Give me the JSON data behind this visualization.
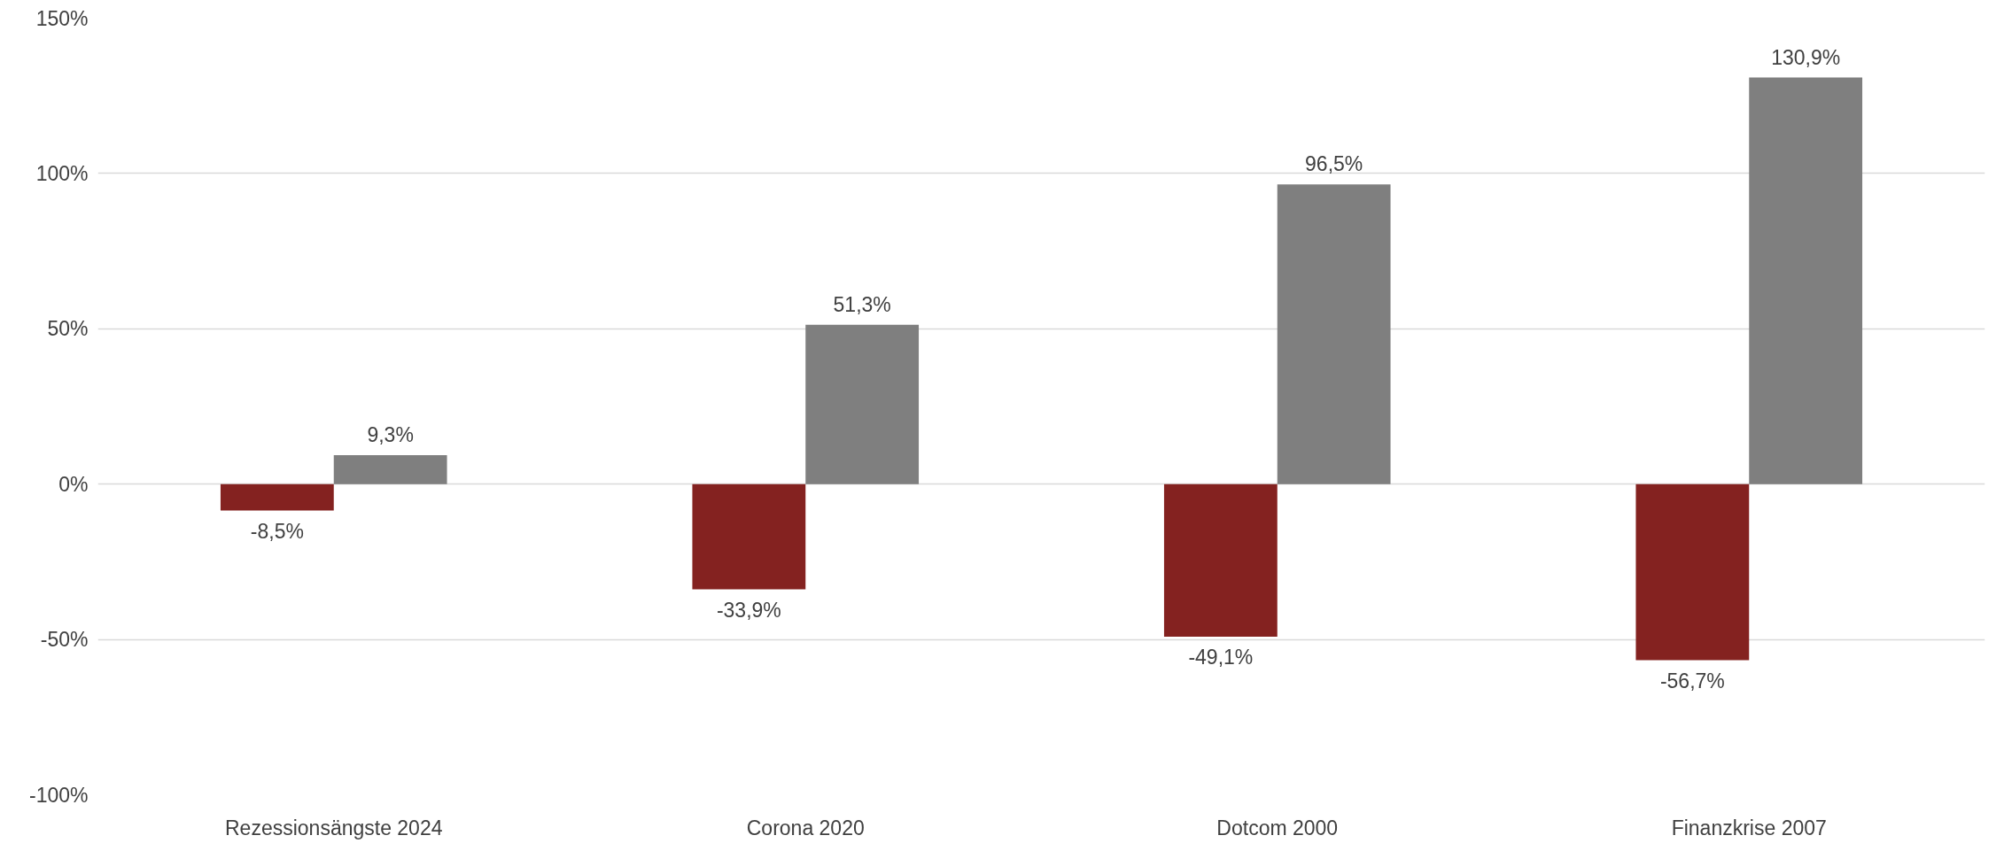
{
  "chart_data": {
    "type": "bar",
    "categories": [
      "Rezessionsängste 2024",
      "Corona 2020",
      "Dotcom 2000",
      "Finanzkrise 2007"
    ],
    "series": [
      {
        "color": "#842220",
        "values": [
          -8.5,
          -33.9,
          -49.1,
          -56.7
        ],
        "value_labels": [
          "-8,5%",
          "-33,9%",
          "-49,1%",
          "-56,7%"
        ]
      },
      {
        "color": "#7f7f7f",
        "values": [
          9.3,
          51.3,
          96.5,
          130.9
        ],
        "value_labels": [
          "9,3%",
          "51,3%",
          "96,5%",
          "130,9%"
        ]
      }
    ],
    "ylim": [
      -100,
      150
    ],
    "yticks": [
      {
        "value": -100,
        "label": "-100%"
      },
      {
        "value": -50,
        "label": "-50%"
      },
      {
        "value": 0,
        "label": "0%"
      },
      {
        "value": 50,
        "label": "50%"
      },
      {
        "value": 100,
        "label": "100%"
      },
      {
        "value": 150,
        "label": "150%"
      }
    ],
    "grid": "y"
  }
}
